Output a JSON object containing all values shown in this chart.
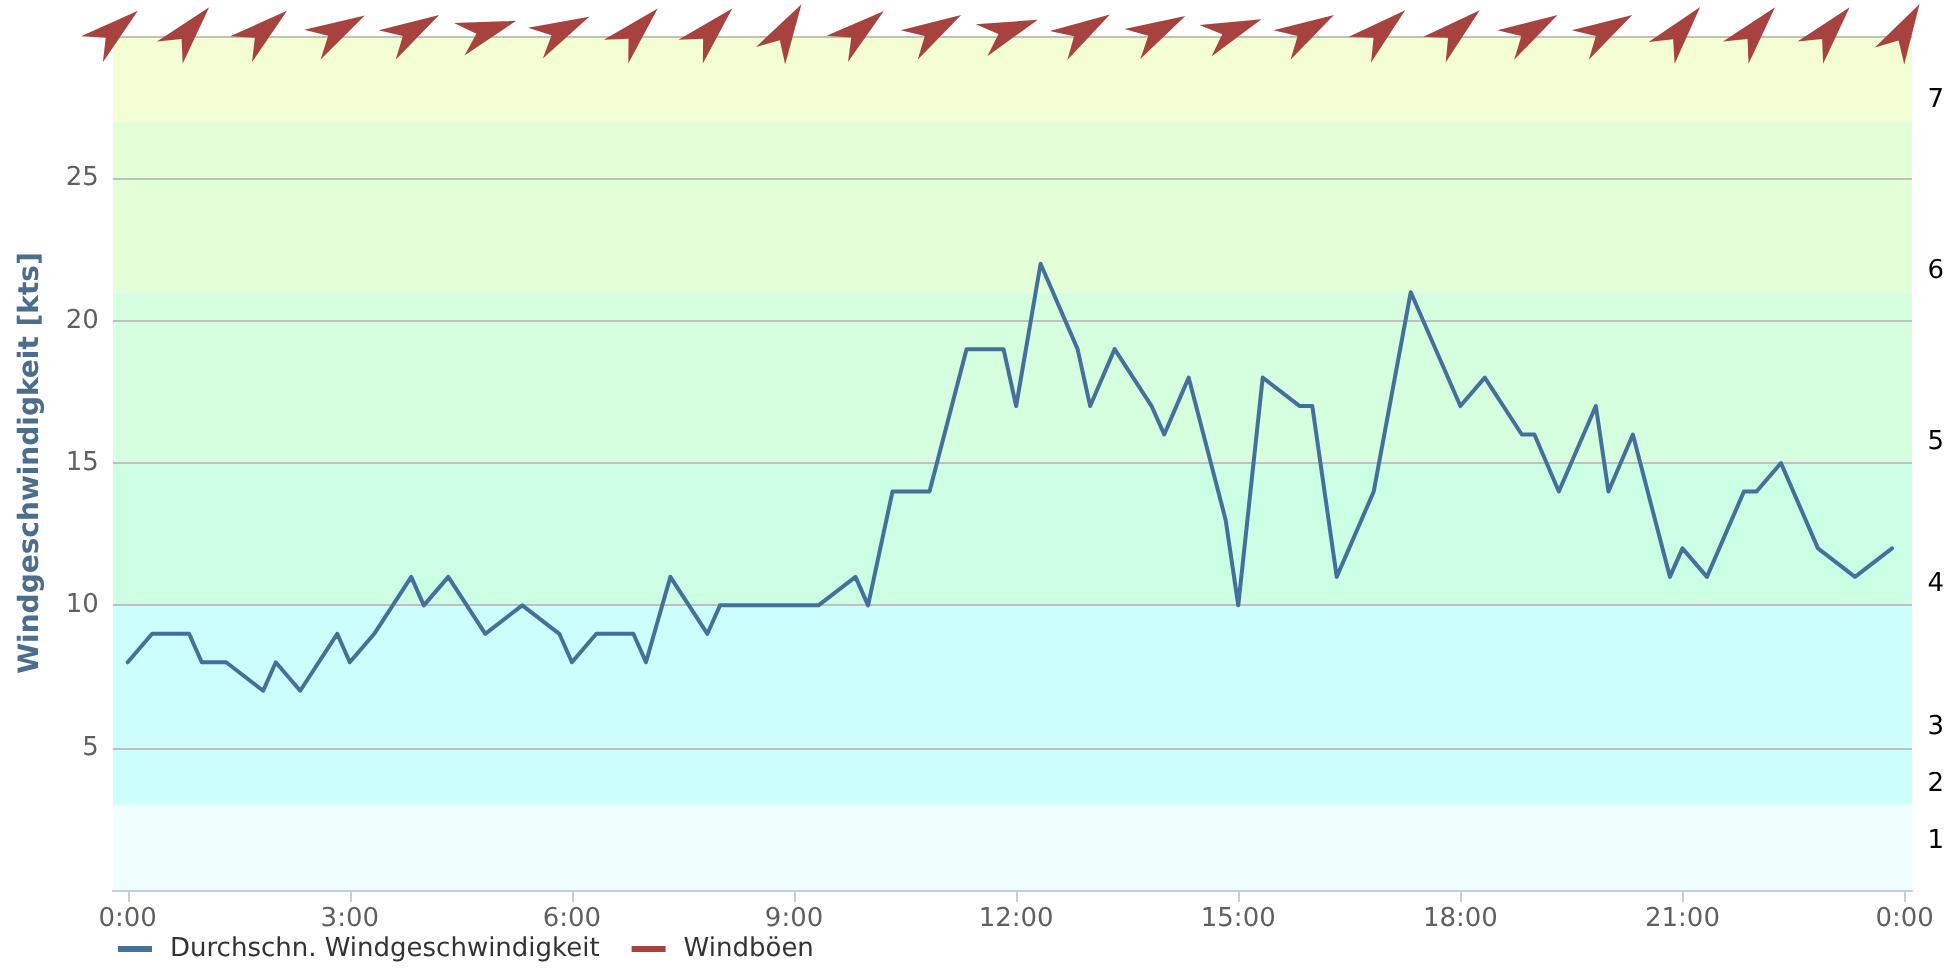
{
  "chart_data": {
    "type": "line",
    "ylabel": "Windgeschwindigkeit [kts]",
    "xlim": [
      -0.2,
      24.1
    ],
    "xticks": [
      {
        "value": 0,
        "label": "0:00"
      },
      {
        "value": 3,
        "label": "3:00"
      },
      {
        "value": 6,
        "label": "6:00"
      },
      {
        "value": 9,
        "label": "9:00"
      },
      {
        "value": 12,
        "label": "12:00"
      },
      {
        "value": 15,
        "label": "15:00"
      },
      {
        "value": 18,
        "label": "18:00"
      },
      {
        "value": 21,
        "label": "21:00"
      },
      {
        "value": 24,
        "label": "0:00"
      }
    ],
    "ylim": [
      0,
      30
    ],
    "yticks": [
      {
        "value": 0,
        "label": null
      },
      5,
      10,
      15,
      20,
      25,
      {
        "value": 30,
        "label": null
      }
    ],
    "series": [
      {
        "name": "Durchschn. Windgeschwindigkeit",
        "color": "#44709c",
        "x": [
          0,
          0.33,
          0.83,
          1,
          1.33,
          1.83,
          2,
          2.33,
          2.83,
          3,
          3.33,
          3.83,
          4,
          4.33,
          4.83,
          5.33,
          5.83,
          6,
          6.33,
          6.83,
          7,
          7.33,
          7.83,
          8,
          9.33,
          9.83,
          10,
          10.33,
          10.83,
          11.33,
          11.83,
          12,
          12.33,
          12.83,
          13,
          13.33,
          13.83,
          14,
          14.33,
          14.83,
          15,
          15.33,
          15.83,
          16,
          16.33,
          16.83,
          17.33,
          18,
          18.33,
          18.83,
          19,
          19.33,
          19.83,
          20,
          20.33,
          20.83,
          21,
          21.33,
          21.83,
          22,
          22.33,
          22.83,
          23.33,
          23.83
        ],
        "values": [
          8,
          9,
          9,
          8,
          8,
          7,
          8,
          7,
          9,
          8,
          9,
          11,
          10,
          11,
          9,
          10,
          9,
          8,
          9,
          9,
          8,
          11,
          9,
          10,
          10,
          11,
          10,
          14,
          14,
          19,
          19,
          17,
          22,
          19,
          17,
          19,
          17,
          16,
          18,
          13,
          10,
          18,
          17,
          17,
          11,
          14,
          21,
          17,
          18,
          16,
          16,
          14,
          17,
          14,
          16,
          11,
          12,
          11,
          14,
          14,
          15,
          12,
          11,
          12
        ]
      },
      {
        "name": "Windböen",
        "color": "#a8423f"
      }
    ],
    "bands": [
      {
        "axis": "y",
        "from": 0,
        "to": 1,
        "color": "#effffe"
      },
      {
        "axis": "y",
        "from": 1,
        "to": 3,
        "color": "#effffe",
        "label": "1"
      },
      {
        "axis": "y",
        "from": 3,
        "to": 5,
        "color": "#cdfffd",
        "label": "2"
      },
      {
        "axis": "y",
        "from": 5,
        "to": 10,
        "color": "#cdfffd",
        "label": "3"
      },
      {
        "axis": "y",
        "from": 10,
        "to": 15,
        "color": "#ccffe4",
        "label": "4"
      },
      {
        "axis": "y",
        "from": 15,
        "to": 21,
        "color": "#d6ffdf",
        "label": "5"
      },
      {
        "axis": "y",
        "from": 21,
        "to": 27,
        "color": "#e3ffd8",
        "label": "6"
      },
      {
        "axis": "y",
        "from": 27,
        "to": 30,
        "color": "#f3ffd3",
        "label": "7"
      }
    ],
    "grid": "y",
    "legend": "bottom left",
    "marker": "none",
    "line_style": "solid"
  }
}
